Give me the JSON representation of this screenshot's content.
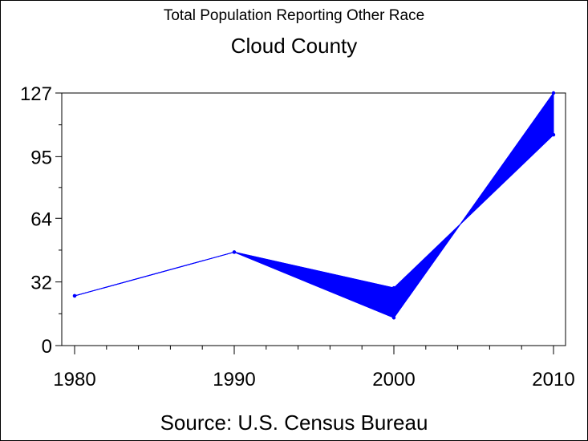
{
  "chart_data": {
    "type": "line",
    "subtitle": "Total Population Reporting Other Race",
    "title": "Cloud County",
    "source": "Source: U.S. Census Bureau",
    "x": [
      1980,
      1990,
      2000,
      2010
    ],
    "xticks": [
      "1980",
      "1990",
      "2000",
      "2010"
    ],
    "ylim": [
      0,
      127
    ],
    "yticks": [
      "0",
      "32",
      "64",
      "95",
      "127"
    ],
    "series": [
      {
        "values": [
          25,
          47,
          29,
          106
        ]
      },
      {
        "values": [
          25,
          47,
          14,
          127
        ]
      }
    ],
    "band_between_series": true,
    "colors": {
      "series": "#0000ff",
      "axis": "#000000"
    },
    "grid": false
  }
}
